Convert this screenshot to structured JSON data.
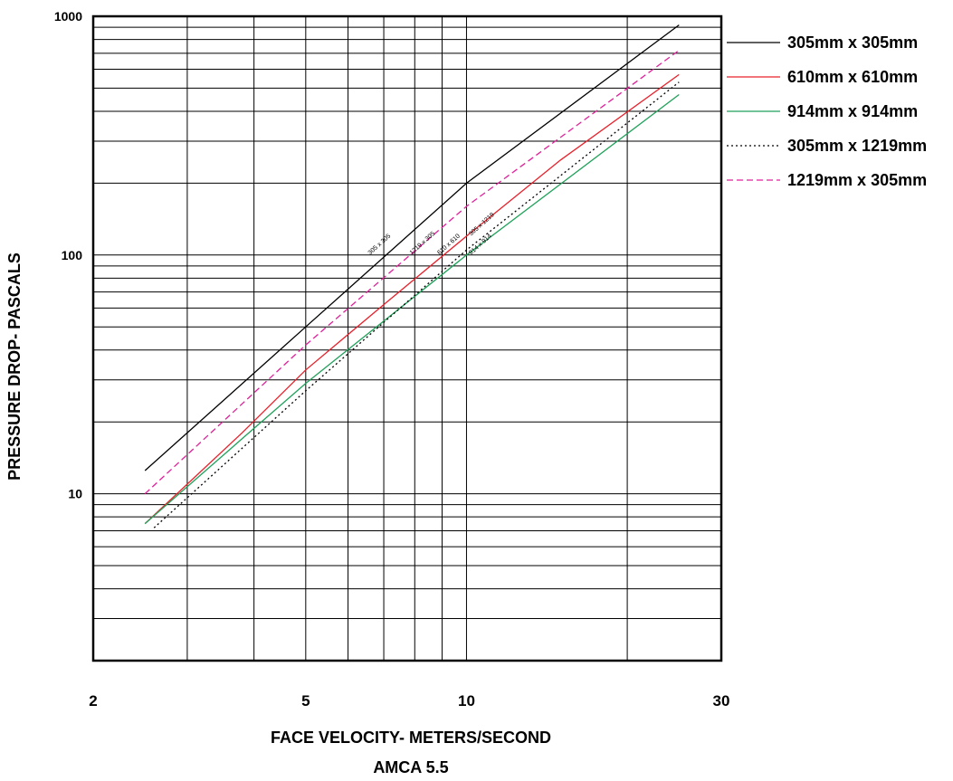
{
  "chart_data": {
    "type": "line",
    "xlabel": "FACE VELOCITY- METERS/SECOND",
    "subtitle": "AMCA 5.5",
    "ylabel": "PRESSURE DROP- PASCALS",
    "xscale": "log",
    "yscale": "log",
    "xlim": [
      2,
      30
    ],
    "ylim": [
      2,
      1000
    ],
    "xticks": [
      "2",
      "5",
      "10",
      "30"
    ],
    "yticks": [
      "10",
      "100",
      "1000"
    ],
    "grid": true,
    "legend_position": "right",
    "series": [
      {
        "name": "305mm x 305mm",
        "color": "#000000",
        "dash": "solid",
        "x": [
          2.5,
          5,
          10,
          25
        ],
        "y": [
          12.5,
          50,
          200,
          920
        ],
        "annotation": {
          "text": "305 x 305",
          "x": 6.6,
          "y": 100
        }
      },
      {
        "name": "610mm x 610mm",
        "color": "#e8202a",
        "dash": "solid",
        "x": [
          2.5,
          3.8,
          5,
          7,
          10,
          15,
          25
        ],
        "y": [
          7.5,
          18,
          33,
          62,
          120,
          250,
          570
        ],
        "annotation": {
          "text": "610 x 610",
          "x": 8.9,
          "y": 100
        }
      },
      {
        "name": "914mm x 914mm",
        "color": "#1fa15a",
        "dash": "solid",
        "x": [
          2.5,
          3.8,
          5,
          10,
          25
        ],
        "y": [
          7.5,
          17,
          29,
          100,
          470
        ],
        "annotation": {
          "text": "914 x 914",
          "x": 10.2,
          "y": 100
        }
      },
      {
        "name": "305mm x 1219mm",
        "color": "#000000",
        "dash": "dotted",
        "x": [
          2.6,
          5,
          10,
          25
        ],
        "y": [
          7.2,
          27,
          105,
          530
        ],
        "annotation": {
          "text": "305 x 1219",
          "x": 10.2,
          "y": 120
        }
      },
      {
        "name": "1219mm x 305mm",
        "color": "#e0209a",
        "dash": "dashed",
        "x": [
          2.5,
          5,
          10,
          25
        ],
        "y": [
          10,
          42,
          160,
          720
        ],
        "annotation": {
          "text": "1219 x 305",
          "x": 7.9,
          "y": 100
        }
      }
    ]
  }
}
